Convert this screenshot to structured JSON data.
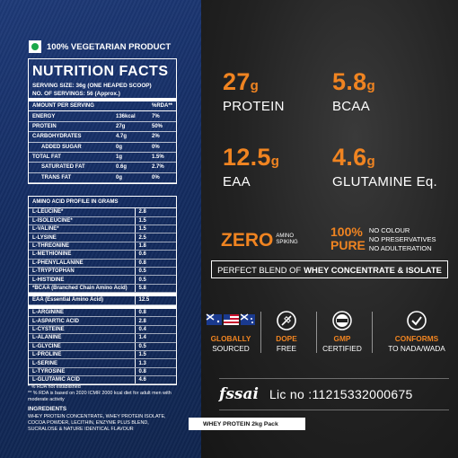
{
  "veg_label": "100% VEGETARIAN PRODUCT",
  "nutrition": {
    "title": "NUTRITION FACTS",
    "serving_size": "SERVING SIZE: 36g (ONE HEAPED SCOOP)",
    "servings": "NO. OF SERVINGS: 56 (Approx.)",
    "header": {
      "label": "AMOUNT PER SERVING",
      "rda": "%RDA**"
    },
    "rows": [
      {
        "label": "ENERGY",
        "value": "136kcal",
        "rda": "7%"
      },
      {
        "label": "PROTEIN",
        "value": "27g",
        "rda": "50%"
      },
      {
        "label": "CARBOHYDRATES",
        "value": "4.7g",
        "rda": "2%"
      },
      {
        "label": "ADDED SUGAR",
        "value": "0g",
        "rda": "0%",
        "indent": true
      },
      {
        "label": "TOTAL FAT",
        "value": "1g",
        "rda": "1.5%"
      },
      {
        "label": "SATURATED FAT",
        "value": "0.6g",
        "rda": "2.7%",
        "indent": true
      },
      {
        "label": "TRANS FAT",
        "value": "0g",
        "rda": "0%",
        "indent": true
      }
    ]
  },
  "amino": {
    "title": "AMINO ACID PROFILE IN GRAMS",
    "bcaa_rows": [
      {
        "label": "L-LEUCINE*",
        "value": "2.8"
      },
      {
        "label": "L-ISOLEUCINE*",
        "value": "1.5"
      },
      {
        "label": "L-VALINE*",
        "value": "1.5"
      },
      {
        "label": "L-LYSINE",
        "value": "2.5"
      },
      {
        "label": "L-THREONINE",
        "value": "1.8"
      },
      {
        "label": "L-METHIONINE",
        "value": "0.6"
      },
      {
        "label": "L-PHENYLALANINE",
        "value": "0.8"
      },
      {
        "label": "L-TRYPTOPHAN",
        "value": "0.5"
      },
      {
        "label": "L-HISTIDINE",
        "value": "0.5"
      },
      {
        "label": "*BCAA (Branched Chain Amino Acid)",
        "value": "5.8"
      }
    ],
    "eaa": {
      "label": "EAA (Essential Amino Acid)",
      "value": "12.5"
    },
    "other_rows": [
      {
        "label": "L-ARGININE",
        "value": "0.8"
      },
      {
        "label": "L-ASPARTIC ACID",
        "value": "2.8"
      },
      {
        "label": "L-CYSTEINE",
        "value": "0.4"
      },
      {
        "label": "L-ALANINE",
        "value": "1.4"
      },
      {
        "label": "L-GLYCINE",
        "value": "0.5"
      },
      {
        "label": "L-PROLINE",
        "value": "1.5"
      },
      {
        "label": "L-SERINE",
        "value": "1.3"
      },
      {
        "label": "L-TYROSINE",
        "value": "0.8"
      },
      {
        "label": "L-GLUTAMIC ACID",
        "value": "4.6"
      }
    ]
  },
  "notes": {
    "rda_note": "* % RDA not established",
    "rda_note2": "** % RDA is based on 2020 ICMR 2000 kcal diet for adult men with moderate activity",
    "ingredients_title": "INGREDIENTS",
    "ingredients": "WHEY PROTEIN CONCENTRATE, WHEY PROTEIN ISOLATE, COCOA POWDER, LECITHIN, ENZYME PLUS BLEND, SUCRALOSE & NATURE IDENTICAL FLAVOUR"
  },
  "pack_label": "WHEY PROTEIN 2kg Pack",
  "stats": [
    {
      "num": "27",
      "unit": "g",
      "label": "PROTEIN"
    },
    {
      "num": "5.8",
      "unit": "g",
      "label": "BCAA"
    },
    {
      "num": "12.5",
      "unit": "g",
      "label": "EAA"
    },
    {
      "num": "4.6",
      "unit": "g",
      "label": "GLUTAMINE Eq."
    }
  ],
  "zero": {
    "big": "ZERO",
    "line1": "AMINO",
    "line2": "SPIKING"
  },
  "pure": {
    "line1": "100%",
    "line2": "PURE",
    "items": [
      "NO COLOUR",
      "NO PRESERVATIVES",
      "NO ADULTERATION"
    ]
  },
  "blend": {
    "prefix": "PERFECT BLEND OF",
    "bold": "WHEY CONCENTRATE & ISOLATE"
  },
  "badges": [
    {
      "t1": "GLOBALLY",
      "t2": "SOURCED",
      "icon": "flags-icon"
    },
    {
      "t1": "DOPE",
      "t2": "FREE",
      "icon": "no-syringe-icon"
    },
    {
      "t1": "GMP",
      "t2": "CERTIFIED",
      "icon": "gmp-seal-icon"
    },
    {
      "t1": "CONFORMS",
      "t2": "TO NADA/WADA",
      "icon": "checkmark-icon"
    }
  ],
  "fssai": {
    "logo": "fssai",
    "lic": "Lic no :11215332000675"
  },
  "colors": {
    "accent": "#f08421",
    "left_bg": "#1a3470",
    "right_bg": "#222222",
    "veg": "#1aa84a"
  }
}
